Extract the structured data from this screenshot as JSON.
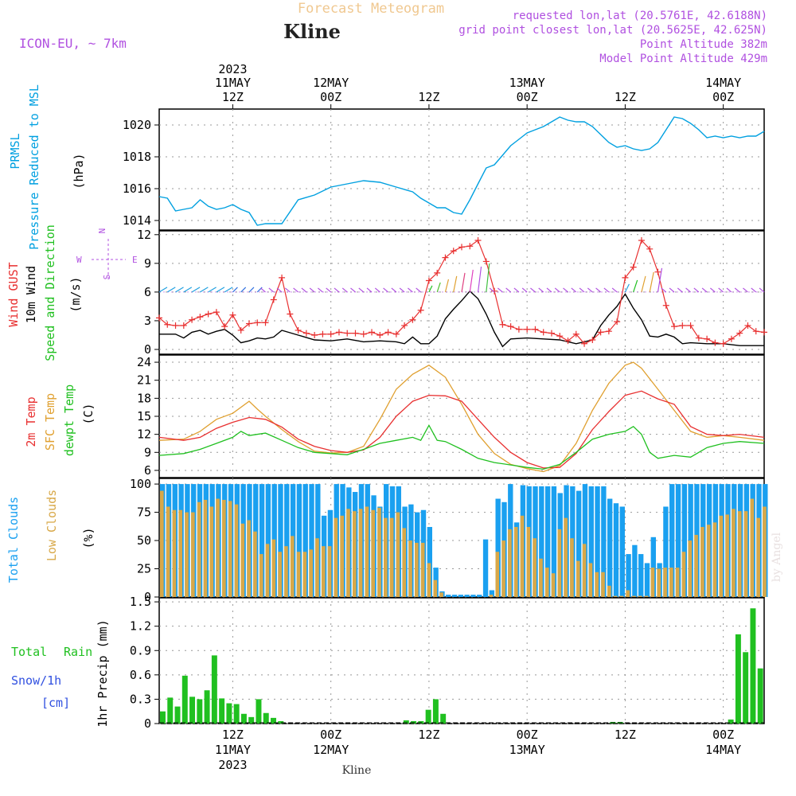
{
  "header": {
    "title": "Forecast Meteogram",
    "location": "Kline",
    "model": "ICON-EU, ~ 7km",
    "requested": "requested lon,lat (20.5761E, 42.6188N)",
    "gridpoint": "grid point closest lon,lat (20.5625E, 42.625N)",
    "point_alt": "Point Altitude 382m",
    "model_alt": "Model Point Altitude 429m",
    "footer": "Kline",
    "credit": "by Angel"
  },
  "time_axis": {
    "top_labels": [
      {
        "year": "2023",
        "date": "11MAY",
        "hour": "12Z"
      },
      {
        "year": "",
        "date": "12MAY",
        "hour": "00Z"
      },
      {
        "year": "",
        "date": "",
        "hour": "12Z"
      },
      {
        "year": "",
        "date": "13MAY",
        "hour": "00Z"
      },
      {
        "year": "",
        "date": "",
        "hour": "12Z"
      },
      {
        "year": "",
        "date": "14MAY",
        "hour": "00Z"
      }
    ],
    "bottom_labels": [
      {
        "hour": "12Z",
        "date": "11MAY",
        "year": "2023"
      },
      {
        "hour": "00Z",
        "date": "12MAY",
        "year": ""
      },
      {
        "hour": "12Z",
        "date": "",
        "year": ""
      },
      {
        "hour": "00Z",
        "date": "13MAY",
        "year": ""
      },
      {
        "hour": "12Z",
        "date": "",
        "year": ""
      },
      {
        "hour": "00Z",
        "date": "14MAY",
        "year": ""
      }
    ],
    "tick_hours": [
      12,
      24,
      36,
      48,
      60,
      72
    ],
    "hour_range": [
      3,
      77
    ]
  },
  "panels": {
    "pressure": {
      "label1": "PRMSL",
      "label2": "Pressure Reduced to MSL",
      "unit": "(hPa)",
      "color1": "#00a0e0",
      "ticks": [
        "1014",
        "1016",
        "1018",
        "1020"
      ]
    },
    "wind": {
      "label1": "Wind GUST",
      "label2": "10m Wind",
      "label3": "Speed and Direction",
      "unit": "(m/s)",
      "ticks": [
        "0",
        "3",
        "6",
        "9",
        "12"
      ],
      "compass_n": "N",
      "compass_s": "S",
      "compass_w": "W",
      "compass_e": "E"
    },
    "temp": {
      "label1": "2m Temp",
      "label2": "SFC Temp",
      "label3": "dewpt Temp",
      "unit": "(C)",
      "ticks": [
        "6",
        "9",
        "12",
        "15",
        "18",
        "21",
        "24"
      ]
    },
    "clouds": {
      "label1": "Total Clouds",
      "label2": "Low Clouds",
      "unit": "(%)",
      "ticks": [
        "0",
        "25",
        "50",
        "75",
        "100"
      ]
    },
    "precip": {
      "label1": "Total",
      "label1b": "Rain",
      "label2": "Snow/1h",
      "label3": "[cm]",
      "unit": "1hr Precip (mm)",
      "ticks": [
        "0",
        "0.3",
        "0.6",
        "0.9",
        "1.2",
        "1.5"
      ]
    }
  },
  "chart_data": {
    "type": "line",
    "x_start_hour": 3,
    "x_end_hour": 77,
    "pressure": {
      "name": "PRMSL",
      "x": [
        3,
        4,
        5,
        6,
        7,
        8,
        9,
        10,
        11,
        12,
        13,
        14,
        15,
        16,
        18,
        20,
        22,
        24,
        26,
        28,
        30,
        32,
        34,
        35,
        36,
        37,
        38,
        39,
        40,
        41,
        42,
        43,
        44,
        45,
        46,
        47,
        48,
        49,
        50,
        51,
        52,
        53,
        54,
        55,
        56,
        57,
        58,
        59,
        60,
        61,
        62,
        63,
        64,
        65,
        66,
        67,
        68,
        69,
        70,
        71,
        72,
        73,
        74,
        75,
        76,
        77
      ],
      "y": [
        1015.5,
        1015.4,
        1014.6,
        1014.7,
        1014.8,
        1015.3,
        1014.9,
        1014.7,
        1014.8,
        1015.0,
        1014.7,
        1014.5,
        1013.7,
        1013.8,
        1013.8,
        1015.3,
        1015.6,
        1016.1,
        1016.3,
        1016.5,
        1016.4,
        1016.1,
        1015.8,
        1015.4,
        1015.1,
        1014.8,
        1014.8,
        1014.5,
        1014.4,
        1015.3,
        1016.3,
        1017.3,
        1017.5,
        1018.1,
        1018.7,
        1019.1,
        1019.5,
        1019.7,
        1019.9,
        1020.2,
        1020.5,
        1020.3,
        1020.2,
        1020.2,
        1019.9,
        1019.4,
        1018.9,
        1018.6,
        1018.7,
        1018.5,
        1018.4,
        1018.5,
        1018.9,
        1019.7,
        1020.5,
        1020.4,
        1020.1,
        1019.7,
        1019.2,
        1019.3,
        1019.2,
        1019.3,
        1019.2,
        1019.3,
        1019.3,
        1019.6
      ]
    },
    "wind_speed": {
      "name": "10m Wind",
      "x": [
        3,
        5,
        6,
        7,
        8,
        9,
        10,
        11,
        12,
        13,
        14,
        15,
        16,
        17,
        18,
        20,
        22,
        24,
        26,
        28,
        30,
        32,
        33,
        34,
        35,
        36,
        37,
        38,
        39,
        40,
        41,
        42,
        43,
        44,
        45,
        46,
        48,
        50,
        52,
        54,
        56,
        57,
        58,
        59,
        60,
        61,
        62,
        63,
        64,
        65,
        66,
        67,
        68,
        70,
        72,
        74,
        77
      ],
      "y": [
        1.6,
        1.6,
        1.2,
        1.8,
        2.0,
        1.6,
        1.9,
        2.1,
        1.5,
        0.7,
        0.9,
        1.2,
        1.1,
        1.3,
        2.0,
        1.5,
        1.0,
        0.9,
        1.1,
        0.8,
        0.9,
        0.8,
        0.6,
        1.3,
        0.6,
        0.6,
        1.4,
        3.2,
        4.2,
        5.1,
        6.1,
        5.3,
        3.7,
        1.8,
        0.3,
        1.1,
        1.2,
        1.1,
        1.0,
        0.6,
        1.0,
        2.5,
        3.6,
        4.5,
        5.8,
        4.3,
        3.1,
        1.4,
        1.3,
        1.6,
        1.3,
        0.6,
        0.7,
        0.6,
        0.6,
        0.4,
        0.4
      ]
    },
    "wind_gust": {
      "name": "Wind GUST",
      "x": [
        3,
        4,
        5,
        6,
        7,
        8,
        9,
        10,
        11,
        12,
        13,
        14,
        15,
        16,
        17,
        18,
        19,
        20,
        21,
        22,
        23,
        24,
        25,
        26,
        27,
        28,
        29,
        30,
        31,
        32,
        33,
        34,
        35,
        36,
        37,
        38,
        39,
        40,
        41,
        42,
        43,
        44,
        45,
        46,
        47,
        48,
        49,
        50,
        51,
        52,
        53,
        54,
        55,
        56,
        57,
        58,
        59,
        60,
        61,
        62,
        63,
        64,
        65,
        66,
        67,
        68,
        69,
        70,
        71,
        72,
        73,
        74,
        75,
        76,
        77
      ],
      "y": [
        3.3,
        2.6,
        2.5,
        2.5,
        3.1,
        3.4,
        3.7,
        3.9,
        2.4,
        3.6,
        2.0,
        2.7,
        2.8,
        2.8,
        5.2,
        7.5,
        3.7,
        2.0,
        1.7,
        1.5,
        1.6,
        1.6,
        1.8,
        1.7,
        1.7,
        1.6,
        1.8,
        1.5,
        1.8,
        1.6,
        2.5,
        3.1,
        4.1,
        7.2,
        8.0,
        9.6,
        10.3,
        10.7,
        10.8,
        11.4,
        9.2,
        6.1,
        2.6,
        2.4,
        2.1,
        2.1,
        2.1,
        1.8,
        1.7,
        1.4,
        0.9,
        1.6,
        0.6,
        1.0,
        1.8,
        1.9,
        2.9,
        7.5,
        8.6,
        11.4,
        10.5,
        8.1,
        4.6,
        2.4,
        2.5,
        2.5,
        1.2,
        1.1,
        0.7,
        0.6,
        1.1,
        1.7,
        2.5,
        1.9,
        1.8
      ]
    },
    "temp_2m": {
      "name": "2m Temp",
      "x": [
        3,
        6,
        8,
        10,
        12,
        14,
        16,
        18,
        20,
        22,
        24,
        26,
        28,
        30,
        32,
        34,
        36,
        38,
        40,
        42,
        44,
        46,
        48,
        50,
        52,
        54,
        56,
        58,
        60,
        62,
        64,
        66,
        68,
        70,
        72,
        74,
        77
      ],
      "y": [
        11.5,
        11.0,
        11.5,
        13.0,
        14.0,
        14.8,
        14.5,
        13.2,
        11.2,
        10.0,
        9.3,
        9.0,
        9.4,
        11.5,
        15.0,
        17.5,
        18.5,
        18.4,
        17.5,
        14.5,
        11.5,
        9.0,
        7.3,
        6.4,
        6.5,
        8.8,
        12.8,
        15.8,
        18.5,
        19.2,
        17.9,
        17.0,
        13.3,
        12.0,
        11.8,
        12.0,
        11.5
      ]
    },
    "temp_sfc": {
      "name": "SFC Temp",
      "x": [
        3,
        6,
        8,
        10,
        12,
        14,
        15,
        16,
        18,
        20,
        22,
        24,
        26,
        28,
        30,
        32,
        34,
        36,
        38,
        40,
        42,
        44,
        46,
        48,
        50,
        52,
        54,
        56,
        58,
        60,
        61,
        62,
        64,
        66,
        68,
        70,
        72,
        74,
        77
      ],
      "y": [
        11.0,
        11.2,
        12.5,
        14.5,
        15.5,
        17.5,
        16.2,
        15.0,
        12.8,
        10.8,
        9.2,
        8.9,
        9.0,
        10.0,
        14.5,
        19.5,
        22.0,
        23.5,
        21.5,
        17.0,
        12.0,
        8.8,
        7.0,
        6.3,
        5.8,
        6.8,
        10.5,
        16.0,
        20.5,
        23.5,
        24.0,
        23.0,
        19.5,
        16.0,
        12.5,
        11.5,
        11.8,
        11.5,
        11.0
      ]
    },
    "temp_dew": {
      "name": "dewpt Temp",
      "x": [
        3,
        6,
        8,
        10,
        12,
        13,
        14,
        16,
        18,
        20,
        22,
        24,
        26,
        28,
        30,
        32,
        34,
        35,
        36,
        37,
        38,
        40,
        42,
        44,
        46,
        48,
        50,
        52,
        54,
        56,
        58,
        60,
        61,
        62,
        63,
        64,
        66,
        68,
        70,
        72,
        74,
        77
      ],
      "y": [
        8.5,
        8.8,
        9.5,
        10.5,
        11.5,
        12.5,
        11.8,
        12.2,
        11.0,
        9.8,
        9.0,
        8.8,
        8.6,
        9.5,
        10.5,
        11.0,
        11.5,
        11.0,
        13.5,
        11.0,
        10.8,
        9.5,
        8.0,
        7.3,
        6.9,
        6.5,
        6.2,
        7.0,
        9.0,
        11.2,
        12.0,
        12.5,
        13.3,
        12.0,
        9.0,
        8.0,
        8.5,
        8.2,
        9.8,
        10.5,
        10.8,
        10.5
      ]
    },
    "total_clouds": {
      "name": "Total Clouds",
      "start_hour": 3,
      "values": [
        100,
        100,
        100,
        100,
        100,
        100,
        100,
        100,
        100,
        100,
        100,
        100,
        100,
        100,
        100,
        100,
        100,
        100,
        100,
        100,
        100,
        100,
        100,
        100,
        100,
        100,
        72,
        77,
        100,
        100,
        97,
        93,
        100,
        100,
        90,
        80,
        100,
        98,
        98,
        80,
        82,
        75,
        77,
        62,
        26,
        5,
        2,
        2,
        2,
        2,
        2,
        2,
        51,
        6,
        87,
        84,
        100,
        66,
        99,
        98,
        98,
        98,
        98,
        98,
        92,
        99,
        98,
        94,
        100,
        98,
        98,
        98,
        87,
        83,
        80,
        38,
        46,
        38,
        30,
        53,
        30,
        80,
        100,
        100,
        100,
        100,
        100,
        100,
        100,
        100,
        100,
        100,
        100,
        100,
        100,
        100,
        100,
        100
      ]
    },
    "low_clouds": {
      "name": "Low Clouds",
      "start_hour": 3,
      "values": [
        94,
        80,
        77,
        77,
        75,
        75,
        84,
        86,
        80,
        87,
        86,
        85,
        82,
        65,
        68,
        58,
        38,
        47,
        51,
        40,
        45,
        54,
        40,
        40,
        42,
        52,
        45,
        45,
        70,
        72,
        78,
        76,
        78,
        80,
        77,
        79,
        70,
        70,
        75,
        61,
        50,
        48,
        48,
        30,
        15,
        4,
        0,
        0,
        0,
        0,
        0,
        0,
        0,
        2,
        40,
        50,
        60,
        62,
        72,
        62,
        52,
        34,
        26,
        21,
        60,
        70,
        52,
        32,
        47,
        30,
        22,
        22,
        10,
        1,
        1,
        6,
        1,
        1,
        1,
        26,
        25,
        26,
        26,
        26,
        40,
        50,
        55,
        62,
        64,
        66,
        72,
        73,
        78,
        76,
        76,
        87,
        70,
        80
      ]
    },
    "precip": {
      "name": "Total Rain",
      "start_hour": 4,
      "values": [
        0.15,
        0.32,
        0.21,
        0.59,
        0.33,
        0.3,
        0.41,
        0.84,
        0.31,
        0.25,
        0.24,
        0.12,
        0.08,
        0.3,
        0.13,
        0.07,
        0.03,
        0,
        0,
        0,
        0,
        0,
        0,
        0,
        0,
        0,
        0,
        0,
        0,
        0,
        0,
        0,
        0,
        0.04,
        0.03,
        0.03,
        0.17,
        0.3,
        0.12,
        0,
        0,
        0,
        0,
        0,
        0,
        0,
        0,
        0,
        0,
        0,
        0,
        0,
        0,
        0,
        0,
        0,
        0,
        0,
        0,
        0,
        0,
        0.02,
        0.02,
        0,
        0,
        0,
        0,
        0,
        0,
        0,
        0,
        0,
        0,
        0,
        0,
        0,
        0,
        0.05,
        1.1,
        0.88,
        1.42,
        0.68
      ]
    }
  },
  "colors": {
    "pressure": "#00a0e0",
    "gust": "#e83030",
    "wind": "#000000",
    "green": "#20c020",
    "temp2m": "#e83030",
    "sfc": "#e0a030",
    "dew": "#20c020",
    "total_clouds": "#1aa0f0",
    "low_clouds": "#d8a848",
    "precip": "#20c020",
    "purple": "#b050e0",
    "title": "#f0c890"
  }
}
